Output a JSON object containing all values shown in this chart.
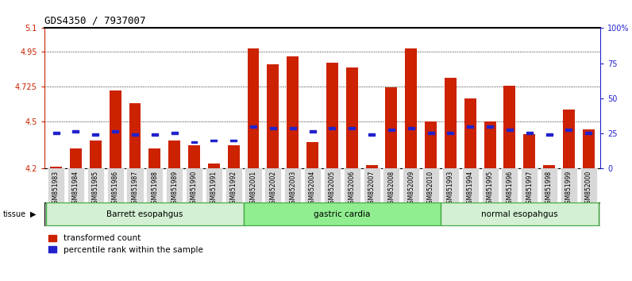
{
  "title": "GDS4350 / 7937007",
  "samples": [
    "GSM851983",
    "GSM851984",
    "GSM851985",
    "GSM851986",
    "GSM851987",
    "GSM851988",
    "GSM851989",
    "GSM851990",
    "GSM851991",
    "GSM851992",
    "GSM852001",
    "GSM852002",
    "GSM852003",
    "GSM852004",
    "GSM852005",
    "GSM852006",
    "GSM852007",
    "GSM852008",
    "GSM852009",
    "GSM852010",
    "GSM851993",
    "GSM851994",
    "GSM851995",
    "GSM851996",
    "GSM851997",
    "GSM851998",
    "GSM851999",
    "GSM852000"
  ],
  "red_values": [
    4.21,
    4.33,
    4.38,
    4.7,
    4.62,
    4.33,
    4.38,
    4.35,
    4.23,
    4.35,
    4.97,
    4.87,
    4.92,
    4.37,
    4.88,
    4.85,
    4.22,
    4.72,
    4.97,
    4.5,
    4.78,
    4.65,
    4.5,
    4.73,
    4.42,
    4.22,
    4.58,
    4.45
  ],
  "blue_values": [
    4.43,
    4.44,
    4.42,
    4.44,
    4.42,
    4.42,
    4.43,
    4.37,
    4.38,
    4.38,
    4.47,
    4.46,
    4.46,
    4.44,
    4.46,
    4.46,
    4.42,
    4.45,
    4.46,
    4.43,
    4.43,
    4.47,
    4.47,
    4.45,
    4.43,
    4.42,
    4.45,
    4.43
  ],
  "groups": [
    {
      "label": "Barrett esopahgus",
      "start": 0,
      "end": 10,
      "color": "#d4f0d4"
    },
    {
      "label": "gastric cardia",
      "start": 10,
      "end": 20,
      "color": "#90ee90"
    },
    {
      "label": "normal esopahgus",
      "start": 20,
      "end": 28,
      "color": "#d4f0d4"
    }
  ],
  "y_min": 4.2,
  "y_max": 5.1,
  "bar_color": "#cc2200",
  "blue_color": "#2222cc",
  "legend_red": "transformed count",
  "legend_blue": "percentile rank within the sample",
  "tissue_label": "tissue"
}
